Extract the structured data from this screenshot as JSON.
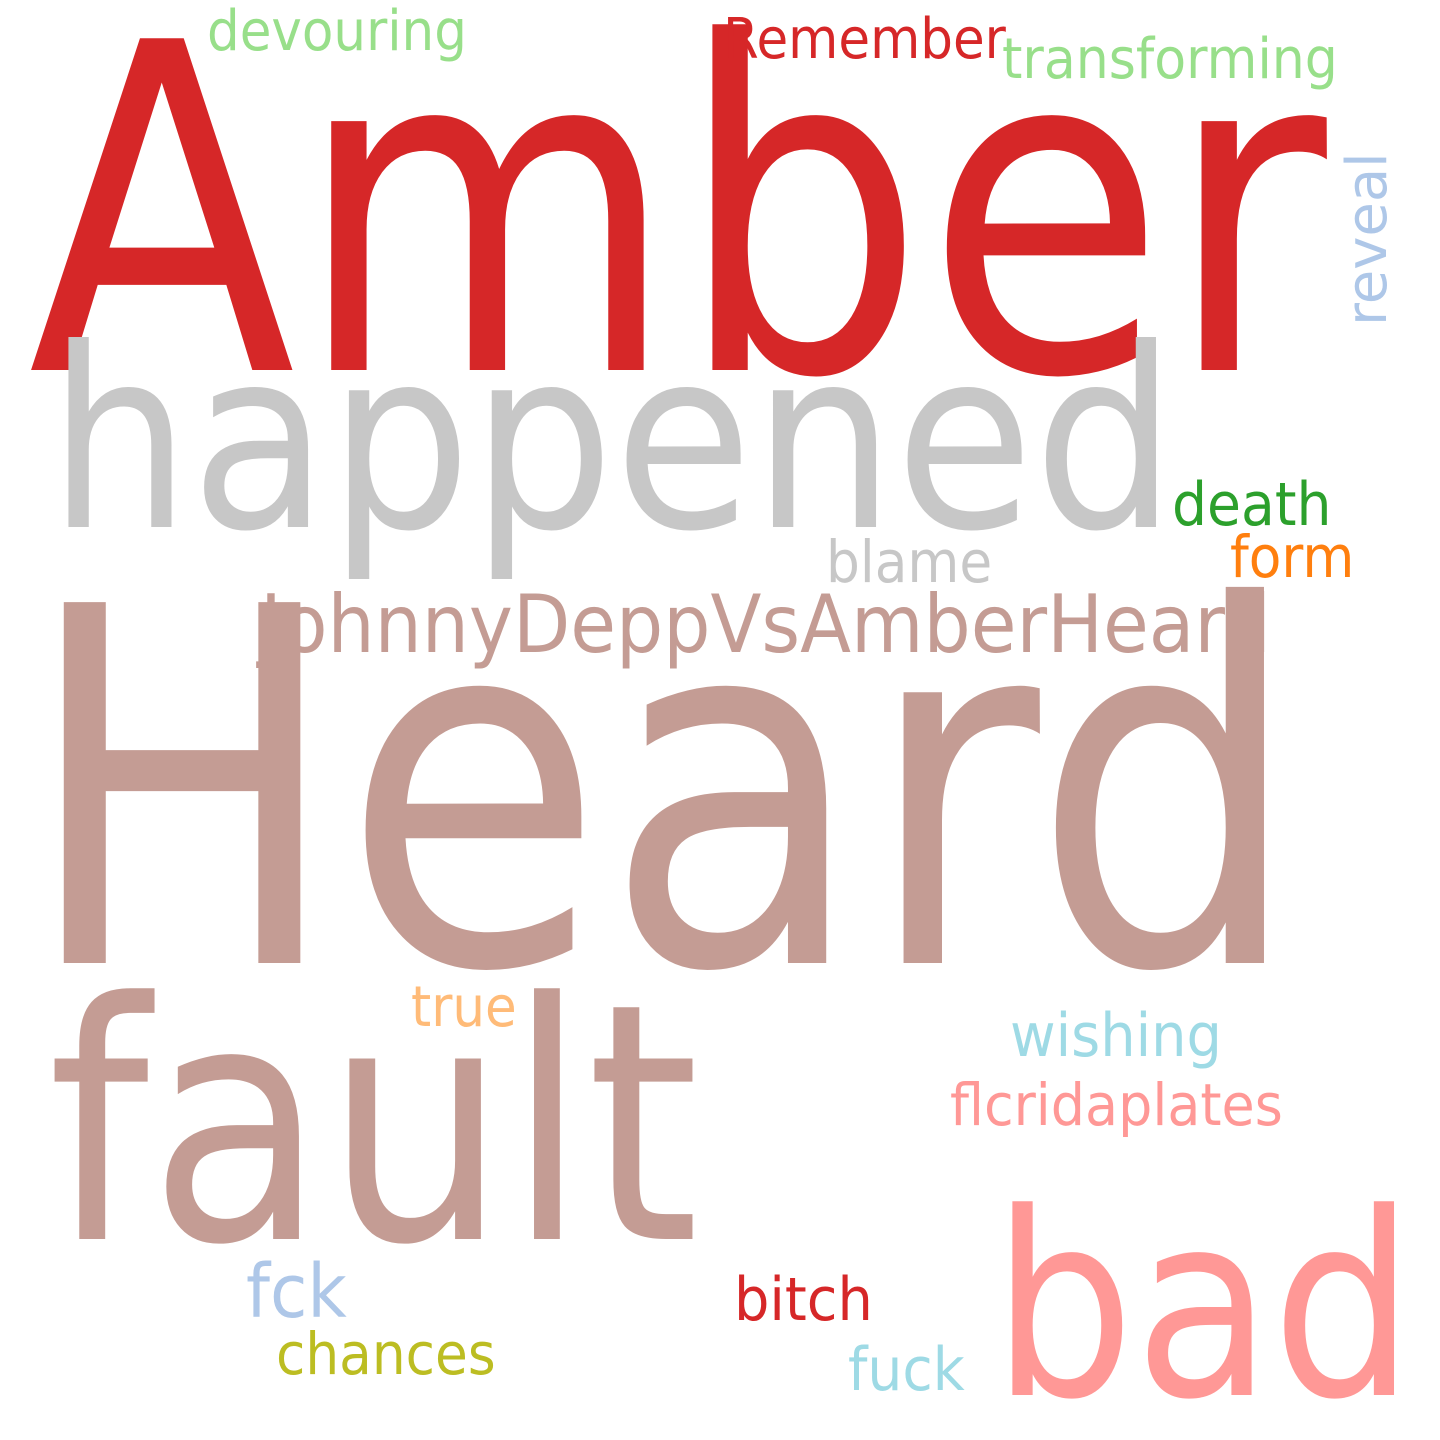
{
  "word_cloud": {
    "words": [
      {
        "text": "Amber",
        "color": "#d62728",
        "rank": 1
      },
      {
        "text": "Heard",
        "color": "#c49c94",
        "rank": 2
      },
      {
        "text": "fault",
        "color": "#c49c94",
        "rank": 3
      },
      {
        "text": "happened",
        "color": "#c7c7c7",
        "rank": 4
      },
      {
        "text": "bad",
        "color": "#ff9896",
        "rank": 5
      },
      {
        "text": "JohnnyDeppVsAmberHeard",
        "color": "#c49c94",
        "rank": 6
      },
      {
        "text": "devouring",
        "color": "#98df8a",
        "rank": 7
      },
      {
        "text": "Remember",
        "color": "#d62728",
        "rank": 8
      },
      {
        "text": "transforming",
        "color": "#98df8a",
        "rank": 9
      },
      {
        "text": "reveal",
        "color": "#aec7e8",
        "rank": 10
      },
      {
        "text": "death",
        "color": "#2ca02c",
        "rank": 11
      },
      {
        "text": "form",
        "color": "#ff7f0e",
        "rank": 12
      },
      {
        "text": "blame",
        "color": "#c7c7c7",
        "rank": 13
      },
      {
        "text": "true",
        "color": "#ffbb78",
        "rank": 14
      },
      {
        "text": "wishing",
        "color": "#9edae5",
        "rank": 15
      },
      {
        "text": "flcridaplates",
        "color": "#ff9896",
        "rank": 16
      },
      {
        "text": "fck",
        "color": "#aec7e8",
        "rank": 17
      },
      {
        "text": "bitch",
        "color": "#d62728",
        "rank": 18
      },
      {
        "text": "chances",
        "color": "#bcbd22",
        "rank": 19
      },
      {
        "text": "fuck",
        "color": "#9edae5",
        "rank": 20
      }
    ]
  }
}
